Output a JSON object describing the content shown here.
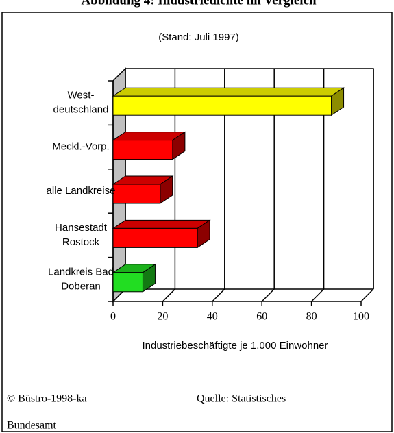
{
  "chart_data": {
    "type": "bar3d",
    "title": "Abbildung 4: Industriedichte im Vergleich",
    "subtitle": "(Stand: Juli 1997)",
    "x_label": "Industriebeschäftigte je 1.000 Einwohner",
    "categories": [
      "West-\ndeutschland",
      "Meckl.-Vorp.",
      "alle Landkreise",
      "Hansestadt\nRostock",
      "Landkreis Bad\nDoberan"
    ],
    "values": [
      88,
      24,
      19,
      34,
      12
    ],
    "colors": [
      "#ffff00",
      "#ff0000",
      "#ff0000",
      "#ff0000",
      "#22dd22"
    ],
    "xlim": [
      0,
      100
    ],
    "xticks": [
      0,
      20,
      40,
      60,
      80,
      100
    ],
    "grid": true
  },
  "footer": {
    "left": "© Büstro-1998-ka",
    "source": "Quelle: Statistisches",
    "source_cont": "Bundesamt"
  }
}
